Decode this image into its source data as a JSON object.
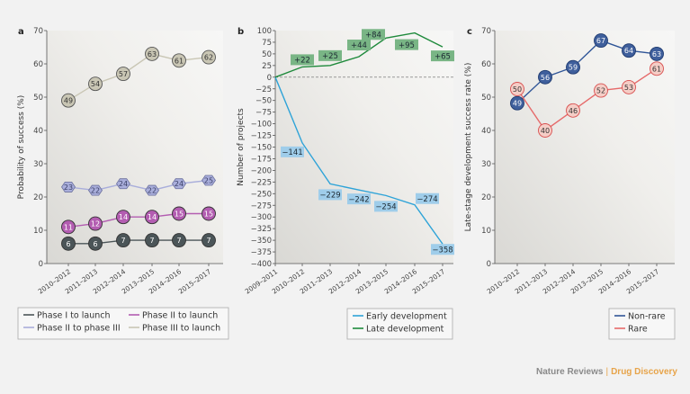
{
  "chart_data": [
    {
      "panel": "a",
      "type": "line",
      "ylabel": "Probability of success (%)",
      "ylim": [
        0,
        70
      ],
      "yticks": [
        0,
        10,
        20,
        30,
        40,
        50,
        60,
        70
      ],
      "categories": [
        "2010–2012",
        "2011–2013",
        "2012–2014",
        "2013–2015",
        "2014–2016",
        "2015–2017"
      ],
      "legend_placement": "bottom",
      "series": [
        {
          "name": "Phase I to launch",
          "values": [
            6,
            6,
            7,
            7,
            7,
            7
          ],
          "color": "#4b5558",
          "marker": "circle",
          "label_color": "#ffffff"
        },
        {
          "name": "Phase II to launch",
          "values": [
            11,
            12,
            14,
            14,
            15,
            15
          ],
          "color": "#b35db1",
          "marker": "circle",
          "label_color": "#ffffff"
        },
        {
          "name": "Phase II to phase III",
          "values": [
            23,
            22,
            24,
            22,
            24,
            25
          ],
          "color": "#a9aedb",
          "marker": "hexagon",
          "label_color": "#3a3f66"
        },
        {
          "name": "Phase III to launch",
          "values": [
            49,
            54,
            57,
            63,
            61,
            62
          ],
          "color": "#c9c6b4",
          "marker": "circle",
          "label_color": "#333333"
        }
      ],
      "legend_order": [
        0,
        1,
        2,
        3
      ]
    },
    {
      "panel": "b",
      "type": "line",
      "ylabel": "Number of projects",
      "ylim": [
        -400,
        100
      ],
      "yticks": [
        100,
        75,
        50,
        25,
        0,
        -25,
        -50,
        -75,
        -100,
        -125,
        -150,
        -175,
        -200,
        -225,
        -250,
        -275,
        -300,
        -325,
        -350,
        -375,
        -400
      ],
      "categories": [
        "2009–2011",
        "2010–2012",
        "2011–2013",
        "2012–2014",
        "2013–2015",
        "2014–2016",
        "2015–2017"
      ],
      "zero_line": "dashed",
      "legend_placement": "bottom-right",
      "series": [
        {
          "name": "Early development",
          "values": [
            0,
            -141,
            -229,
            -242,
            -254,
            -274,
            -358
          ],
          "labels": [
            "",
            "−141",
            "−229",
            "−242",
            "−254",
            "−274",
            "−358"
          ],
          "color": "#2ea3d8",
          "label_bg": "#9fcdea"
        },
        {
          "name": "Late development",
          "values": [
            0,
            22,
            25,
            44,
            84,
            95,
            65
          ],
          "labels": [
            "",
            "+22",
            "+25",
            "+44",
            "+84",
            "+95",
            "+65"
          ],
          "color": "#1f8a3c",
          "label_bg": "#79b585"
        }
      ]
    },
    {
      "panel": "c",
      "type": "line",
      "ylabel": "Late-stage development success rate (%)",
      "ylim": [
        0,
        70
      ],
      "yticks": [
        0,
        10,
        20,
        30,
        40,
        50,
        60,
        70
      ],
      "categories": [
        "2010–2012",
        "2011–2013",
        "2012–2014",
        "2013–2015",
        "2014–2016",
        "2015–2017"
      ],
      "legend_placement": "bottom-right",
      "series": [
        {
          "name": "Non-rare",
          "values": [
            49,
            56,
            59,
            67,
            64,
            63
          ],
          "color": "#2f5597",
          "marker": "circle",
          "fill": "#3f5f9c",
          "label_color": "#ffffff"
        },
        {
          "name": "Rare",
          "values": [
            50,
            40,
            46,
            52,
            53,
            61
          ],
          "color": "#e66a6a",
          "marker": "circle",
          "fill": "#f5cdc6",
          "label_color": "#333333"
        }
      ]
    }
  ],
  "footer": {
    "journal": "Nature Reviews",
    "separator": "|",
    "section": "Drug Discovery"
  }
}
